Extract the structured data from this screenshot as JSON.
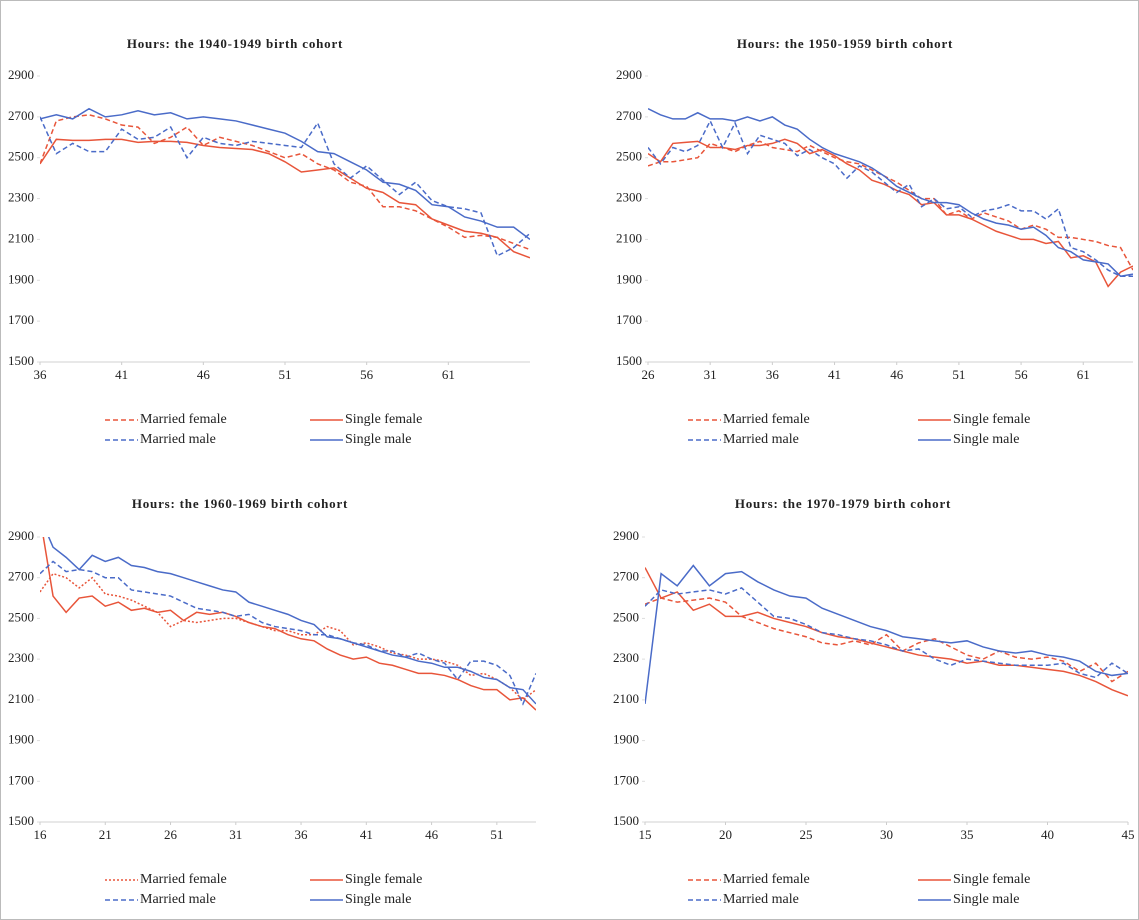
{
  "chart_data": [
    {
      "type": "line",
      "title": "Hours: the 1940-1949 birth cohort",
      "x": [
        36,
        37,
        38,
        39,
        40,
        41,
        42,
        43,
        44,
        45,
        46,
        47,
        48,
        49,
        50,
        51,
        52,
        53,
        54,
        55,
        56,
        57,
        58,
        59,
        60,
        61,
        62,
        63,
        64,
        65,
        66
      ],
      "xlim": [
        36,
        66
      ],
      "xticks": [
        36,
        41,
        46,
        51,
        56,
        61
      ],
      "ylim": [
        1500,
        2900
      ],
      "yticks": [
        1500,
        1700,
        1900,
        2100,
        2300,
        2500,
        2700,
        2900
      ],
      "series": [
        {
          "name": "Married female",
          "color": "#e8553a",
          "style": "dashed",
          "values": [
            2470,
            2680,
            2700,
            2710,
            2690,
            2660,
            2650,
            2570,
            2600,
            2650,
            2560,
            2600,
            2580,
            2560,
            2530,
            2500,
            2520,
            2470,
            2440,
            2380,
            2360,
            2260,
            2260,
            2240,
            2200,
            2160,
            2110,
            2120,
            2110,
            2080,
            2050
          ]
        },
        {
          "name": "Single female",
          "color": "#e8553a",
          "style": "solid",
          "values": [
            2470,
            2590,
            2585,
            2585,
            2590,
            2590,
            2575,
            2580,
            2580,
            2575,
            2560,
            2550,
            2545,
            2540,
            2520,
            2480,
            2430,
            2440,
            2450,
            2400,
            2350,
            2330,
            2280,
            2270,
            2200,
            2170,
            2140,
            2130,
            2110,
            2040,
            2010
          ]
        },
        {
          "name": "Married male",
          "color": "#4a6bc8",
          "style": "dashed",
          "values": [
            2700,
            2520,
            2570,
            2530,
            2530,
            2640,
            2590,
            2600,
            2650,
            2500,
            2600,
            2570,
            2560,
            2580,
            2570,
            2560,
            2550,
            2670,
            2470,
            2400,
            2460,
            2390,
            2320,
            2380,
            2290,
            2260,
            2250,
            2230,
            2020,
            2060,
            2130
          ]
        },
        {
          "name": "Single male",
          "color": "#4a6bc8",
          "style": "solid",
          "values": [
            2690,
            2710,
            2690,
            2740,
            2700,
            2710,
            2730,
            2710,
            2720,
            2690,
            2700,
            2690,
            2680,
            2660,
            2640,
            2620,
            2580,
            2530,
            2520,
            2480,
            2440,
            2380,
            2370,
            2340,
            2270,
            2260,
            2210,
            2190,
            2160,
            2160,
            2100
          ]
        }
      ]
    },
    {
      "type": "line",
      "title": "Hours: the 1950-1959 birth cohort",
      "x": [
        26,
        27,
        28,
        29,
        30,
        31,
        32,
        33,
        34,
        35,
        36,
        37,
        38,
        39,
        40,
        41,
        42,
        43,
        44,
        45,
        46,
        47,
        48,
        49,
        50,
        51,
        52,
        53,
        54,
        55,
        56,
        57,
        58,
        59,
        60,
        61,
        62,
        63,
        64,
        65
      ],
      "xlim": [
        26,
        65
      ],
      "xticks": [
        26,
        31,
        36,
        41,
        46,
        51,
        56,
        61
      ],
      "ylim": [
        1500,
        2900
      ],
      "yticks": [
        1500,
        1700,
        1900,
        2100,
        2300,
        2500,
        2700,
        2900
      ],
      "series": [
        {
          "name": "Married female",
          "color": "#e8553a",
          "style": "dashed",
          "values": [
            2460,
            2480,
            2480,
            2490,
            2500,
            2570,
            2550,
            2530,
            2560,
            2580,
            2550,
            2540,
            2530,
            2560,
            2530,
            2500,
            2480,
            2470,
            2440,
            2410,
            2380,
            2340,
            2300,
            2300,
            2220,
            2240,
            2200,
            2230,
            2210,
            2190,
            2150,
            2170,
            2150,
            2110,
            2110,
            2100,
            2090,
            2070,
            2060,
            1950
          ]
        },
        {
          "name": "Single female",
          "color": "#e8553a",
          "style": "solid",
          "values": [
            2520,
            2480,
            2570,
            2575,
            2580,
            2550,
            2550,
            2540,
            2560,
            2560,
            2570,
            2590,
            2570,
            2520,
            2540,
            2510,
            2470,
            2440,
            2390,
            2370,
            2340,
            2320,
            2270,
            2280,
            2220,
            2220,
            2200,
            2170,
            2140,
            2120,
            2100,
            2100,
            2080,
            2090,
            2010,
            2020,
            1990,
            1870,
            1940,
            1970
          ]
        },
        {
          "name": "Married male",
          "color": "#4a6bc8",
          "style": "dashed",
          "values": [
            2550,
            2470,
            2550,
            2530,
            2560,
            2680,
            2550,
            2670,
            2520,
            2610,
            2590,
            2570,
            2510,
            2540,
            2500,
            2470,
            2400,
            2460,
            2430,
            2380,
            2330,
            2370,
            2260,
            2300,
            2250,
            2260,
            2210,
            2240,
            2250,
            2270,
            2240,
            2240,
            2200,
            2250,
            2060,
            2040,
            2000,
            1950,
            1920,
            1920
          ]
        },
        {
          "name": "Single male",
          "color": "#4a6bc8",
          "style": "solid",
          "values": [
            2740,
            2710,
            2690,
            2690,
            2720,
            2690,
            2690,
            2680,
            2700,
            2680,
            2700,
            2660,
            2640,
            2590,
            2550,
            2520,
            2500,
            2480,
            2450,
            2410,
            2360,
            2330,
            2300,
            2280,
            2280,
            2270,
            2230,
            2200,
            2180,
            2170,
            2150,
            2160,
            2120,
            2060,
            2040,
            2000,
            1990,
            1980,
            1920,
            1930
          ]
        }
      ]
    },
    {
      "type": "line",
      "title": "Hours: the 1960-1969 birth cohort",
      "x": [
        16,
        17,
        18,
        19,
        20,
        21,
        22,
        23,
        24,
        25,
        26,
        27,
        28,
        29,
        30,
        31,
        32,
        33,
        34,
        35,
        36,
        37,
        38,
        39,
        40,
        41,
        42,
        43,
        44,
        45,
        46,
        47,
        48,
        49,
        50,
        51,
        52,
        53,
        54
      ],
      "xlim": [
        16,
        54
      ],
      "xticks": [
        16,
        21,
        26,
        31,
        36,
        41,
        46,
        51
      ],
      "ylim": [
        1500,
        2900
      ],
      "yticks": [
        1500,
        1700,
        1900,
        2100,
        2300,
        2500,
        2700,
        2900
      ],
      "series": [
        {
          "name": "Married female",
          "color": "#e8553a",
          "style": "dotted",
          "values": [
            2630,
            2720,
            2700,
            2650,
            2700,
            2620,
            2610,
            2590,
            2560,
            2530,
            2460,
            2490,
            2480,
            2490,
            2500,
            2500,
            2480,
            2460,
            2440,
            2440,
            2420,
            2420,
            2460,
            2440,
            2370,
            2380,
            2360,
            2330,
            2320,
            2300,
            2300,
            2290,
            2270,
            2220,
            2230,
            2200,
            2160,
            2100,
            2150
          ]
        },
        {
          "name": "Single female",
          "color": "#e8553a",
          "style": "solid",
          "values": [
            3000,
            2610,
            2530,
            2600,
            2610,
            2560,
            2580,
            2540,
            2550,
            2530,
            2540,
            2490,
            2530,
            2520,
            2530,
            2510,
            2480,
            2460,
            2450,
            2420,
            2400,
            2390,
            2350,
            2320,
            2300,
            2310,
            2280,
            2270,
            2250,
            2230,
            2230,
            2220,
            2200,
            2170,
            2150,
            2150,
            2100,
            2110,
            2050
          ]
        },
        {
          "name": "Married male",
          "color": "#4a6bc8",
          "style": "dashed",
          "values": [
            2720,
            2780,
            2730,
            2740,
            2730,
            2700,
            2700,
            2640,
            2630,
            2620,
            2610,
            2580,
            2550,
            2540,
            2530,
            2510,
            2520,
            2480,
            2460,
            2450,
            2440,
            2420,
            2420,
            2400,
            2380,
            2370,
            2340,
            2340,
            2310,
            2330,
            2300,
            2280,
            2200,
            2290,
            2290,
            2270,
            2220,
            2080,
            2230
          ]
        },
        {
          "name": "Single male",
          "color": "#4a6bc8",
          "style": "solid",
          "values": [
            3000,
            2850,
            2800,
            2740,
            2810,
            2780,
            2800,
            2760,
            2750,
            2730,
            2720,
            2700,
            2680,
            2660,
            2640,
            2630,
            2580,
            2560,
            2540,
            2520,
            2490,
            2470,
            2410,
            2400,
            2380,
            2360,
            2340,
            2320,
            2310,
            2290,
            2280,
            2260,
            2260,
            2240,
            2210,
            2200,
            2160,
            2150,
            2080
          ]
        }
      ]
    },
    {
      "type": "line",
      "title": "Hours: the 1970-1979 birth cohort",
      "x": [
        15,
        16,
        17,
        18,
        19,
        20,
        21,
        22,
        23,
        24,
        25,
        26,
        27,
        28,
        29,
        30,
        31,
        32,
        33,
        34,
        35,
        36,
        37,
        38,
        39,
        40,
        41,
        42,
        43,
        44,
        45
      ],
      "xlim": [
        15,
        45
      ],
      "xticks": [
        15,
        20,
        25,
        30,
        35,
        40,
        45
      ],
      "ylim": [
        1500,
        2900
      ],
      "yticks": [
        1500,
        1700,
        1900,
        2100,
        2300,
        2500,
        2700,
        2900
      ],
      "series": [
        {
          "name": "Married female",
          "color": "#e8553a",
          "style": "dashed",
          "values": [
            2570,
            2600,
            2580,
            2590,
            2600,
            2580,
            2510,
            2480,
            2450,
            2430,
            2410,
            2380,
            2370,
            2390,
            2370,
            2420,
            2340,
            2380,
            2400,
            2360,
            2320,
            2300,
            2340,
            2310,
            2300,
            2310,
            2290,
            2240,
            2280,
            2190,
            2240
          ]
        },
        {
          "name": "Single female",
          "color": "#e8553a",
          "style": "solid",
          "values": [
            2750,
            2600,
            2630,
            2540,
            2570,
            2510,
            2510,
            2530,
            2500,
            2480,
            2460,
            2430,
            2410,
            2400,
            2380,
            2360,
            2340,
            2320,
            2310,
            2300,
            2280,
            2290,
            2270,
            2270,
            2260,
            2250,
            2240,
            2220,
            2190,
            2150,
            2120
          ]
        },
        {
          "name": "Married male",
          "color": "#4a6bc8",
          "style": "dashed",
          "values": [
            2560,
            2640,
            2620,
            2630,
            2640,
            2620,
            2650,
            2580,
            2510,
            2500,
            2470,
            2430,
            2420,
            2400,
            2390,
            2370,
            2340,
            2350,
            2300,
            2270,
            2300,
            2290,
            2280,
            2270,
            2270,
            2270,
            2280,
            2230,
            2210,
            2280,
            2230
          ]
        },
        {
          "name": "Single male",
          "color": "#4a6bc8",
          "style": "solid",
          "values": [
            2080,
            2720,
            2660,
            2760,
            2660,
            2720,
            2730,
            2680,
            2640,
            2610,
            2600,
            2550,
            2520,
            2490,
            2460,
            2440,
            2410,
            2400,
            2390,
            2380,
            2390,
            2360,
            2340,
            2330,
            2340,
            2320,
            2310,
            2290,
            2240,
            2220,
            2230
          ]
        }
      ]
    }
  ]
}
